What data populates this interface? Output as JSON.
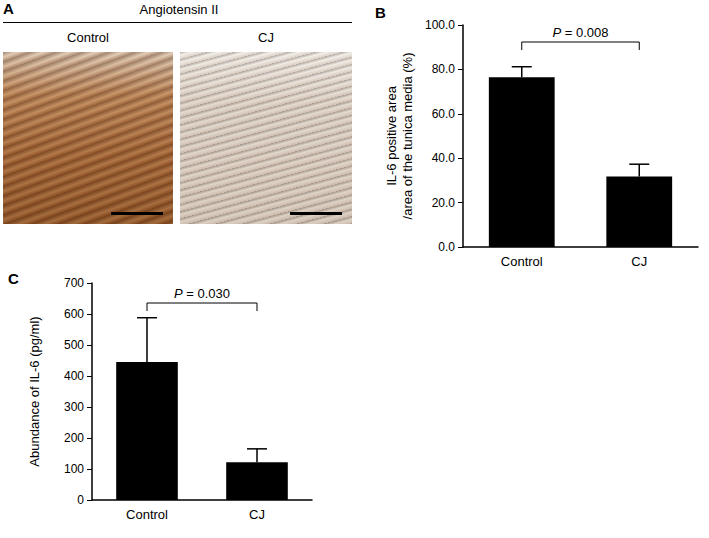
{
  "panel_a": {
    "panel_label": "A",
    "title": "Angiotensin II",
    "images": [
      "Control",
      "CJ"
    ]
  },
  "chart_data": [
    {
      "panel_label": "B",
      "type": "bar",
      "categories": [
        "Control",
        "CJ"
      ],
      "values": [
        76.5,
        31.8
      ],
      "errors": [
        4.7,
        5.5
      ],
      "color": "#000000",
      "ylabel": "IL-6 positive area\n/area of the tunica media (%)",
      "ylim": [
        0,
        100
      ],
      "yticks": [
        {
          "value": 0,
          "label": "0.0"
        },
        {
          "value": 20,
          "label": "20.0"
        },
        {
          "value": 40,
          "label": "40.0"
        },
        {
          "value": 60,
          "label": "60.0"
        },
        {
          "value": 80,
          "label": "80.0"
        },
        {
          "value": 100,
          "label": "100.0"
        }
      ],
      "grid": false,
      "annotation": "P = 0.008"
    },
    {
      "panel_label": "C",
      "type": "bar",
      "categories": [
        "Control",
        "CJ"
      ],
      "values": [
        445,
        122
      ],
      "errors": [
        143,
        43
      ],
      "color": "#000000",
      "ylabel": "Abundance of IL-6 (pg/ml)",
      "ylim": [
        0,
        700
      ],
      "yticks": [
        0,
        100,
        200,
        300,
        400,
        500,
        600,
        700
      ],
      "grid": false,
      "annotation": "P = 0.030"
    }
  ]
}
